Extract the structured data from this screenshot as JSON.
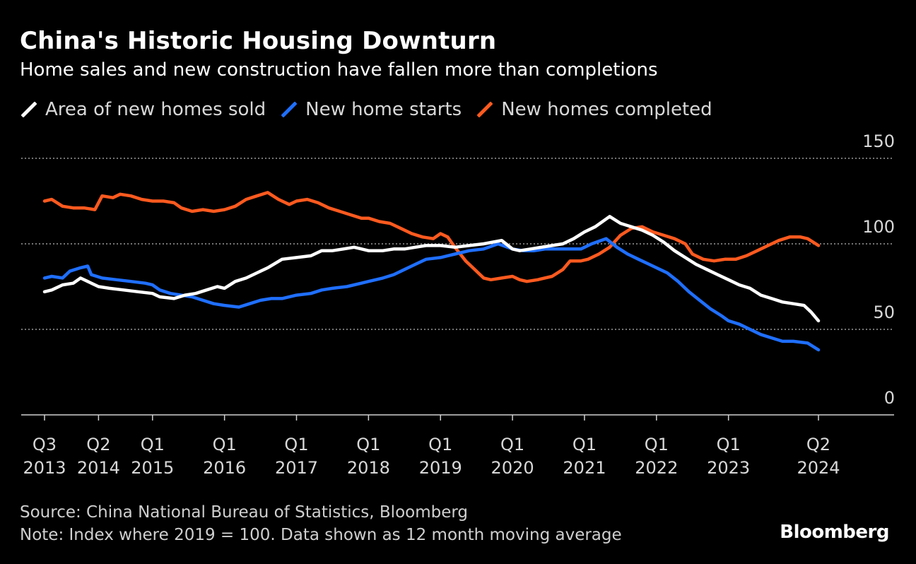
{
  "title": "China's Historic Housing Downturn",
  "subtitle": "Home sales and new construction have fallen more than completions",
  "source": "Source: China National Bureau of Statistics, Bloomberg",
  "note": "Note: Index where 2019 = 100. Data shown as 12 month moving average",
  "brand": "Bloomberg",
  "chart_data": {
    "type": "line",
    "title": "China's Historic Housing Downturn",
    "subtitle": "Home sales and new construction have fallen more than completions",
    "ylim": [
      0,
      150
    ],
    "yticks": [
      0,
      50,
      100,
      150
    ],
    "ytick_labels": [
      "0",
      "50",
      "100",
      "150"
    ],
    "xlim": [
      2013.5,
      2024.92
    ],
    "xticks": [
      {
        "x": 2013.5,
        "line1": "Q3",
        "line2": "2013"
      },
      {
        "x": 2014.25,
        "line1": "Q2",
        "line2": "2014"
      },
      {
        "x": 2015.0,
        "line1": "Q1",
        "line2": "2015"
      },
      {
        "x": 2016.0,
        "line1": "Q1",
        "line2": "2016"
      },
      {
        "x": 2017.0,
        "line1": "Q1",
        "line2": "2017"
      },
      {
        "x": 2018.0,
        "line1": "Q1",
        "line2": "2018"
      },
      {
        "x": 2019.0,
        "line1": "Q1",
        "line2": "2019"
      },
      {
        "x": 2020.0,
        "line1": "Q1",
        "line2": "2020"
      },
      {
        "x": 2021.0,
        "line1": "Q1",
        "line2": "2021"
      },
      {
        "x": 2022.0,
        "line1": "Q1",
        "line2": "2022"
      },
      {
        "x": 2023.0,
        "line1": "Q1",
        "line2": "2023"
      },
      {
        "x": 2024.25,
        "line1": "Q2",
        "line2": "2024"
      }
    ],
    "legend_position": "top-left",
    "series": [
      {
        "name": "Area of new homes sold",
        "color": "#ffffff",
        "points": [
          [
            2013.5,
            72
          ],
          [
            2013.6,
            73
          ],
          [
            2013.75,
            76
          ],
          [
            2013.9,
            77
          ],
          [
            2014.0,
            80
          ],
          [
            2014.1,
            78
          ],
          [
            2014.25,
            75
          ],
          [
            2014.4,
            74
          ],
          [
            2014.6,
            73
          ],
          [
            2014.8,
            72
          ],
          [
            2015.0,
            71
          ],
          [
            2015.1,
            69
          ],
          [
            2015.3,
            68
          ],
          [
            2015.45,
            70
          ],
          [
            2015.6,
            71
          ],
          [
            2015.75,
            73
          ],
          [
            2015.9,
            75
          ],
          [
            2016.0,
            74
          ],
          [
            2016.15,
            78
          ],
          [
            2016.3,
            80
          ],
          [
            2016.45,
            83
          ],
          [
            2016.6,
            86
          ],
          [
            2016.8,
            91
          ],
          [
            2017.0,
            92
          ],
          [
            2017.2,
            93
          ],
          [
            2017.35,
            96
          ],
          [
            2017.5,
            96
          ],
          [
            2017.65,
            97
          ],
          [
            2017.8,
            98
          ],
          [
            2018.0,
            96
          ],
          [
            2018.2,
            96
          ],
          [
            2018.35,
            97
          ],
          [
            2018.5,
            97
          ],
          [
            2018.65,
            98
          ],
          [
            2018.8,
            99
          ],
          [
            2019.0,
            99
          ],
          [
            2019.2,
            98
          ],
          [
            2019.4,
            99
          ],
          [
            2019.6,
            100
          ],
          [
            2019.85,
            102
          ],
          [
            2020.0,
            97
          ],
          [
            2020.1,
            96
          ],
          [
            2020.25,
            97
          ],
          [
            2020.4,
            98
          ],
          [
            2020.55,
            99
          ],
          [
            2020.7,
            100
          ],
          [
            2020.85,
            103
          ],
          [
            2021.0,
            107
          ],
          [
            2021.15,
            110
          ],
          [
            2021.35,
            116
          ],
          [
            2021.5,
            112
          ],
          [
            2021.65,
            110
          ],
          [
            2021.8,
            108
          ],
          [
            2021.95,
            105
          ],
          [
            2022.1,
            101
          ],
          [
            2022.25,
            96
          ],
          [
            2022.4,
            92
          ],
          [
            2022.55,
            88
          ],
          [
            2022.7,
            85
          ],
          [
            2022.85,
            82
          ],
          [
            2023.0,
            79
          ],
          [
            2023.15,
            76
          ],
          [
            2023.3,
            74
          ],
          [
            2023.45,
            70
          ],
          [
            2023.6,
            68
          ],
          [
            2023.75,
            66
          ],
          [
            2023.9,
            65
          ],
          [
            2024.05,
            64
          ],
          [
            2024.15,
            60
          ],
          [
            2024.25,
            55
          ]
        ]
      },
      {
        "name": "New home starts",
        "color": "#1f6fff",
        "points": [
          [
            2013.5,
            80
          ],
          [
            2013.6,
            81
          ],
          [
            2013.75,
            80
          ],
          [
            2013.85,
            84
          ],
          [
            2014.0,
            86
          ],
          [
            2014.1,
            87
          ],
          [
            2014.15,
            82
          ],
          [
            2014.3,
            80
          ],
          [
            2014.5,
            79
          ],
          [
            2014.7,
            78
          ],
          [
            2014.9,
            77
          ],
          [
            2015.0,
            76
          ],
          [
            2015.1,
            73
          ],
          [
            2015.25,
            71
          ],
          [
            2015.4,
            70
          ],
          [
            2015.55,
            69
          ],
          [
            2015.7,
            67
          ],
          [
            2015.85,
            65
          ],
          [
            2016.0,
            64
          ],
          [
            2016.2,
            63
          ],
          [
            2016.35,
            65
          ],
          [
            2016.5,
            67
          ],
          [
            2016.65,
            68
          ],
          [
            2016.8,
            68
          ],
          [
            2017.0,
            70
          ],
          [
            2017.2,
            71
          ],
          [
            2017.35,
            73
          ],
          [
            2017.5,
            74
          ],
          [
            2017.7,
            75
          ],
          [
            2017.9,
            77
          ],
          [
            2018.0,
            78
          ],
          [
            2018.2,
            80
          ],
          [
            2018.35,
            82
          ],
          [
            2018.5,
            85
          ],
          [
            2018.65,
            88
          ],
          [
            2018.8,
            91
          ],
          [
            2019.0,
            92
          ],
          [
            2019.2,
            94
          ],
          [
            2019.4,
            96
          ],
          [
            2019.6,
            97
          ],
          [
            2019.8,
            100
          ],
          [
            2020.0,
            97
          ],
          [
            2020.15,
            96
          ],
          [
            2020.3,
            96
          ],
          [
            2020.45,
            97
          ],
          [
            2020.6,
            97
          ],
          [
            2020.8,
            97
          ],
          [
            2020.95,
            97
          ],
          [
            2021.1,
            100
          ],
          [
            2021.3,
            103
          ],
          [
            2021.45,
            98
          ],
          [
            2021.6,
            94
          ],
          [
            2021.75,
            91
          ],
          [
            2021.9,
            88
          ],
          [
            2022.0,
            86
          ],
          [
            2022.15,
            83
          ],
          [
            2022.3,
            78
          ],
          [
            2022.45,
            72
          ],
          [
            2022.6,
            67
          ],
          [
            2022.75,
            62
          ],
          [
            2022.9,
            58
          ],
          [
            2023.0,
            55
          ],
          [
            2023.15,
            53
          ],
          [
            2023.3,
            50
          ],
          [
            2023.45,
            47
          ],
          [
            2023.6,
            45
          ],
          [
            2023.75,
            43
          ],
          [
            2023.9,
            43
          ],
          [
            2024.1,
            42
          ],
          [
            2024.25,
            38
          ]
        ]
      },
      {
        "name": "New homes completed",
        "color": "#ff5a1f",
        "points": [
          [
            2013.5,
            125
          ],
          [
            2013.6,
            126
          ],
          [
            2013.75,
            122
          ],
          [
            2013.9,
            121
          ],
          [
            2014.05,
            121
          ],
          [
            2014.2,
            120
          ],
          [
            2014.3,
            128
          ],
          [
            2014.45,
            127
          ],
          [
            2014.55,
            129
          ],
          [
            2014.7,
            128
          ],
          [
            2014.85,
            126
          ],
          [
            2015.0,
            125
          ],
          [
            2015.15,
            125
          ],
          [
            2015.3,
            124
          ],
          [
            2015.4,
            121
          ],
          [
            2015.55,
            119
          ],
          [
            2015.7,
            120
          ],
          [
            2015.85,
            119
          ],
          [
            2016.0,
            120
          ],
          [
            2016.15,
            122
          ],
          [
            2016.3,
            126
          ],
          [
            2016.45,
            128
          ],
          [
            2016.6,
            130
          ],
          [
            2016.75,
            126
          ],
          [
            2016.9,
            123
          ],
          [
            2017.0,
            125
          ],
          [
            2017.15,
            126
          ],
          [
            2017.3,
            124
          ],
          [
            2017.45,
            121
          ],
          [
            2017.6,
            119
          ],
          [
            2017.75,
            117
          ],
          [
            2017.9,
            115
          ],
          [
            2018.0,
            115
          ],
          [
            2018.15,
            113
          ],
          [
            2018.3,
            112
          ],
          [
            2018.45,
            109
          ],
          [
            2018.6,
            106
          ],
          [
            2018.75,
            104
          ],
          [
            2018.9,
            103
          ],
          [
            2019.0,
            106
          ],
          [
            2019.1,
            104
          ],
          [
            2019.2,
            98
          ],
          [
            2019.35,
            90
          ],
          [
            2019.5,
            84
          ],
          [
            2019.6,
            80
          ],
          [
            2019.7,
            79
          ],
          [
            2019.85,
            80
          ],
          [
            2020.0,
            81
          ],
          [
            2020.1,
            79
          ],
          [
            2020.2,
            78
          ],
          [
            2020.35,
            79
          ],
          [
            2020.55,
            81
          ],
          [
            2020.7,
            85
          ],
          [
            2020.8,
            90
          ],
          [
            2020.95,
            90
          ],
          [
            2021.05,
            91
          ],
          [
            2021.2,
            94
          ],
          [
            2021.35,
            98
          ],
          [
            2021.5,
            105
          ],
          [
            2021.65,
            109
          ],
          [
            2021.8,
            110
          ],
          [
            2021.95,
            107
          ],
          [
            2022.1,
            105
          ],
          [
            2022.25,
            103
          ],
          [
            2022.4,
            100
          ],
          [
            2022.5,
            94
          ],
          [
            2022.65,
            91
          ],
          [
            2022.8,
            90
          ],
          [
            2022.95,
            91
          ],
          [
            2023.1,
            91
          ],
          [
            2023.25,
            93
          ],
          [
            2023.4,
            96
          ],
          [
            2023.55,
            99
          ],
          [
            2023.7,
            102
          ],
          [
            2023.85,
            104
          ],
          [
            2024.0,
            104
          ],
          [
            2024.1,
            103
          ],
          [
            2024.25,
            99
          ]
        ]
      }
    ]
  }
}
